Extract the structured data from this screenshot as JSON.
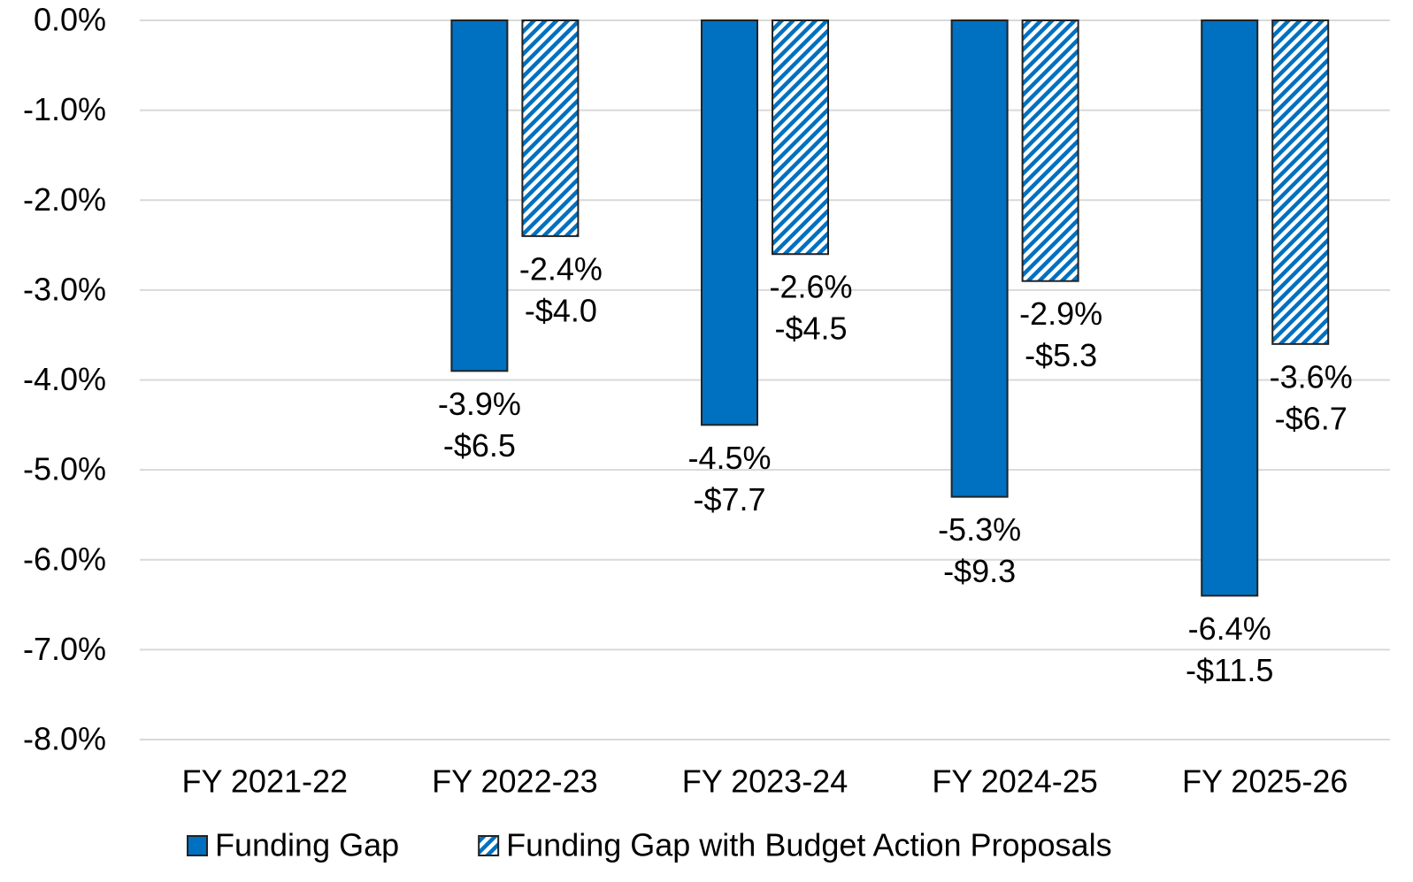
{
  "chart_data": {
    "type": "bar",
    "categories": [
      "FY 2021-22",
      "FY 2022-23",
      "FY 2023-24",
      "FY 2024-25",
      "FY 2025-26"
    ],
    "series": [
      {
        "name": "Funding Gap",
        "color": "#0070c0",
        "hatch": false,
        "values": [
          null,
          -3.9,
          -4.5,
          -5.3,
          -6.4
        ],
        "value_labels": [
          null,
          "-3.9%",
          "-4.5%",
          "-5.3%",
          "-6.4%"
        ],
        "amount_labels": [
          null,
          "-$6.5",
          "-$7.7",
          "-$9.3",
          "-$11.5"
        ]
      },
      {
        "name": "Funding Gap with Budget Action Proposals",
        "color": "#0070c0",
        "hatch": true,
        "values": [
          null,
          -2.4,
          -2.6,
          -2.9,
          -3.6
        ],
        "value_labels": [
          null,
          "-2.4%",
          "-2.6%",
          "-2.9%",
          "-3.6%"
        ],
        "amount_labels": [
          null,
          "-$4.0",
          "-$4.5",
          "-$5.3",
          "-$6.7"
        ]
      }
    ],
    "ylim": [
      -8,
      0
    ],
    "yticks": [
      {
        "value": 0,
        "label": "0.0%"
      },
      {
        "value": -1,
        "label": "-1.0%"
      },
      {
        "value": -2,
        "label": "-2.0%"
      },
      {
        "value": -3,
        "label": "-3.0%"
      },
      {
        "value": -4,
        "label": "-4.0%"
      },
      {
        "value": -5,
        "label": "-5.0%"
      },
      {
        "value": -6,
        "label": "-6.0%"
      },
      {
        "value": -7,
        "label": "-7.0%"
      },
      {
        "value": -8,
        "label": "-8.0%"
      }
    ],
    "grid": true,
    "legend": "bottom"
  }
}
